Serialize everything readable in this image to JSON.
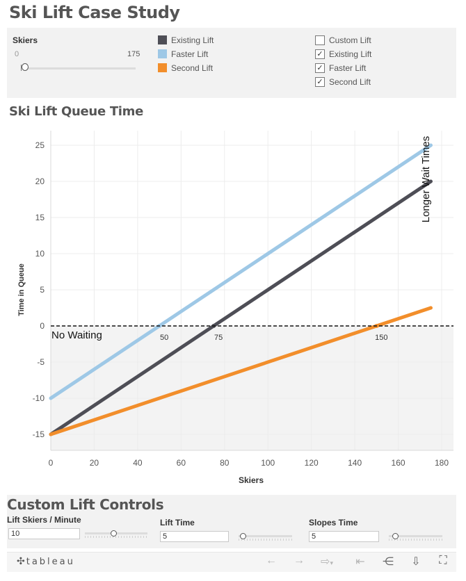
{
  "dashboard": {
    "title": "Ski Lift Case Study"
  },
  "skiers_filter": {
    "label": "Skiers",
    "min": "0",
    "max": "175",
    "value": 0
  },
  "legend": [
    {
      "label": "Existing Lift",
      "color": "#4e4e56"
    },
    {
      "label": "Faster Lift",
      "color": "#9ec8e6"
    },
    {
      "label": "Second Lift",
      "color": "#f28e2b"
    }
  ],
  "lift_filter": [
    {
      "label": "Custom Lift",
      "checked": false
    },
    {
      "label": "Existing Lift",
      "checked": true
    },
    {
      "label": "Faster Lift",
      "checked": true
    },
    {
      "label": "Second Lift",
      "checked": true
    }
  ],
  "chart_section": {
    "title": "Ski Lift Queue Time"
  },
  "chart_data": {
    "type": "line",
    "title": "Ski Lift Queue Time",
    "xlabel": "Skiers",
    "ylabel": "Time in Queue",
    "xlim": [
      0,
      185
    ],
    "ylim": [
      -17,
      27
    ],
    "xticks": [
      0,
      20,
      40,
      60,
      80,
      100,
      120,
      140,
      160,
      180
    ],
    "yticks": [
      -15,
      -10,
      -5,
      0,
      5,
      10,
      15,
      20,
      25
    ],
    "grid": true,
    "series": [
      {
        "name": "Faster Lift",
        "color": "#9ec8e6",
        "x": [
          0,
          175
        ],
        "y": [
          -10,
          25
        ],
        "zero_crossing": 50
      },
      {
        "name": "Existing Lift",
        "color": "#4e4e56",
        "x": [
          0,
          175
        ],
        "y": [
          -15,
          20
        ],
        "zero_crossing": 75
      },
      {
        "name": "Second Lift",
        "color": "#f28e2b",
        "x": [
          0,
          175
        ],
        "y": [
          -15,
          2.5
        ],
        "zero_crossing": 150
      }
    ],
    "reference_line": {
      "y": 0,
      "style": "dashed"
    },
    "annotations": {
      "below_zero": "No Waiting",
      "above": "Longer Wait Times"
    }
  },
  "custom_controls": {
    "title": "Custom Lift Controls",
    "lift_skiers_per_minute": {
      "label": "Lift Skiers / Minute",
      "value": "10",
      "level": 0.45
    },
    "lift_time": {
      "label": "Lift Time",
      "value": "5",
      "level": 0.08
    },
    "slopes_time": {
      "label": "Slopes Time",
      "value": "5",
      "level": 0.12
    }
  },
  "footer": {
    "logo": "tableau",
    "icons": [
      "undo-icon",
      "redo-icon",
      "revert-icon",
      "reset-icon",
      "share-icon",
      "download-icon",
      "fullscreen-icon"
    ]
  }
}
